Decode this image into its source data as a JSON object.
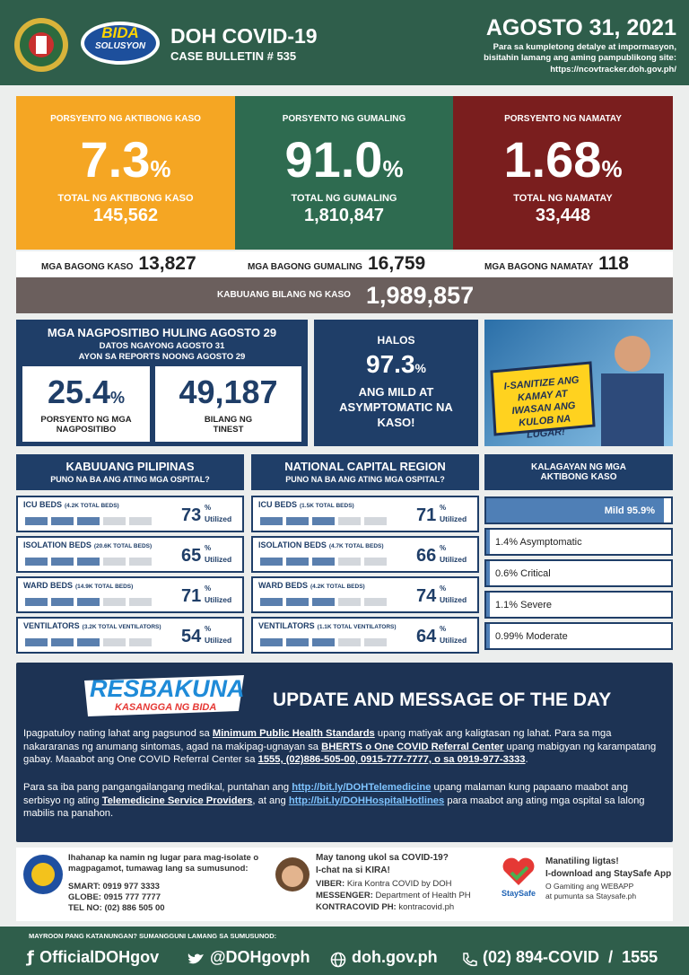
{
  "header": {
    "title": "DOH COVID-19",
    "bulletin": "CASE BULLETIN # 535",
    "logo_top": "BIDA",
    "logo_bottom": "SOLUSYON",
    "date": "AGOSTO 31, 2021",
    "note": "Para sa kumpletong detalye at impormasyon, bisitahin lamang ang aming pampublikong site:",
    "url": "https://ncovtracker.doh.gov.ph/"
  },
  "summary": [
    {
      "label": "PORSYENTO NG AKTIBONG KASO",
      "value": "7.3",
      "unit": "%",
      "total_label": "TOTAL NG AKTIBONG KASO",
      "total": "145,562"
    },
    {
      "label": "PORSYENTO NG GUMALING",
      "value": "91.0",
      "unit": "%",
      "total_label": "TOTAL NG GUMALING",
      "total": "1,810,847"
    },
    {
      "label": "PORSYENTO NG NAMATAY",
      "value": "1.68",
      "unit": "%",
      "total_label": "TOTAL NG NAMATAY",
      "total": "33,448"
    }
  ],
  "new_cases": [
    {
      "label": "MGA BAGONG KASO",
      "value": "13,827"
    },
    {
      "label": "MGA BAGONG GUMALING",
      "value": "16,759"
    },
    {
      "label": "MGA BAGONG NAMATAY",
      "value": "118"
    }
  ],
  "total": {
    "label": "KABUUANG BILANG NG KASO",
    "value": "1,989,857"
  },
  "positivity": {
    "title": "MGA NAGPOSITIBO HULING AGOSTO 29",
    "sub1": "DATOS NGAYONG AGOSTO 31",
    "sub2": "AYON SA REPORTS NOONG AGOSTO 29",
    "rate": "25.4",
    "rate_unit": "%",
    "rate_label": "PORSYENTO NG MGA NAGPOSITIBO",
    "tested": "49,187",
    "tested_label": "BILANG NG TINEST"
  },
  "mild": {
    "pre": "HALOS",
    "value": "97.3",
    "unit": "%",
    "text": "ANG MILD AT ASYMPTOMATIC NA KASO!"
  },
  "poster": {
    "text": "I-SANITIZE ANG KAMAY AT IWASAN ANG KULOB NA LUGAR!"
  },
  "hospital": [
    {
      "title": "KABUUANG PILIPINAS",
      "subtitle": "PUNO NA BA ANG ATING MGA OSPITAL?",
      "rows": [
        {
          "label": "ICU BEDS",
          "detail": "(4.2K TOTAL BEDS)",
          "value": "73",
          "unit": "%",
          "util": "Utilized"
        },
        {
          "label": "ISOLATION BEDS",
          "detail": "(20.6K TOTAL BEDS)",
          "value": "65",
          "unit": "%",
          "util": "Utilized"
        },
        {
          "label": "WARD BEDS",
          "detail": "(14.9K TOTAL BEDS)",
          "value": "71",
          "unit": "%",
          "util": "Utilized"
        },
        {
          "label": "VENTILATORS",
          "detail": "(3.2K TOTAL VENTILATORS)",
          "value": "54",
          "unit": "%",
          "util": "Utilized"
        }
      ]
    },
    {
      "title": "NATIONAL CAPITAL REGION",
      "subtitle": "PUNO NA BA ANG ATING MGA OSPITAL?",
      "rows": [
        {
          "label": "ICU BEDS",
          "detail": "(1.5K TOTAL BEDS)",
          "value": "71",
          "unit": "%",
          "util": "Utilized"
        },
        {
          "label": "ISOLATION BEDS",
          "detail": "(4.7K TOTAL BEDS)",
          "value": "66",
          "unit": "%",
          "util": "Utilized"
        },
        {
          "label": "WARD BEDS",
          "detail": "(4.2K TOTAL BEDS)",
          "value": "74",
          "unit": "%",
          "util": "Utilized"
        },
        {
          "label": "VENTILATORS",
          "detail": "(1.1K TOTAL VENTILATORS)",
          "value": "64",
          "unit": "%",
          "util": "Utilized"
        }
      ]
    }
  ],
  "status": {
    "title": "KALAGAYAN NG MGA AKTIBONG KASO",
    "rows": [
      "Mild 95.9%",
      "1.4% Asymptomatic",
      "0.6% Critical",
      "1.1% Severe",
      "0.99% Moderate"
    ]
  },
  "message": {
    "logo": "RESBAKUNA",
    "logo_sub": "KASANGGA NG BIDA",
    "title": "UPDATE AND MESSAGE OF THE DAY",
    "p1": [
      "Ipagpatuloy nating lahat ang pagsunod sa ",
      "Minimum Public Health Standards",
      " upang matiyak ang kaligtasan ng lahat. Para sa mga nakararanas ng anumang sintomas, agad na makipag-ugnayan sa ",
      "BHERTS o One COVID Referral Center",
      " upang mabigyan ng karampatang gabay. Maaabot ang One COVID Referral Center sa ",
      "1555, (02)886-505-00, 0915-777-7777, o sa 0919-977-3333",
      "."
    ],
    "p2": [
      "Para sa iba pang pangangailangang medikal, puntahan ang ",
      "http://bit.ly/DOHTelemedicine",
      " upang malaman kung papaano maabot ang serbisyo ng ating ",
      "Telemedicine Service Providers",
      ", at ang ",
      "http://bit.ly/DOHHospitalHotlines",
      " para maabot ang ating mga ospital sa lalong mabilis na panahon."
    ]
  },
  "contacts": {
    "isolate": {
      "text": "Ihahanap ka namin ng lugar para mag-isolate o magpagamot, tumawag lang sa sumusunod:",
      "lines": [
        "SMART: 0919 977 3333",
        "GLOBE: 0915 777 7777",
        "TEL NO: (02) 886 505 00"
      ]
    },
    "kira": {
      "q": "May tanong ukol sa COVID-19?",
      "chat": "I-chat na si KIRA!",
      "lines": [
        {
          "k": "VIBER:",
          "v": "Kira Kontra COVID by DOH"
        },
        {
          "k": "MESSENGER:",
          "v": "Department of Health PH"
        },
        {
          "k": "KONTRACOVID PH:",
          "v": "kontracovid.ph"
        }
      ]
    },
    "staysafe": {
      "logo": "StaySafe",
      "head": "Manatiling ligtas!",
      "sub": "I-download ang StaySafe App",
      "lines": [
        "O Gamiting ang WEBAPP",
        "at pumunta sa Staysafe.ph"
      ]
    }
  },
  "footer": {
    "note": "MAYROON PANG KATANUNGAN? SUMANGGUNI LAMANG SA SUMUSUNOD:",
    "facebook": "OfficialDOHgov",
    "twitter": "@DOHgovph",
    "web": "doh.gov.ph",
    "phone": "(02) 894-COVID",
    "sep": "/",
    "hotline": "1555"
  }
}
